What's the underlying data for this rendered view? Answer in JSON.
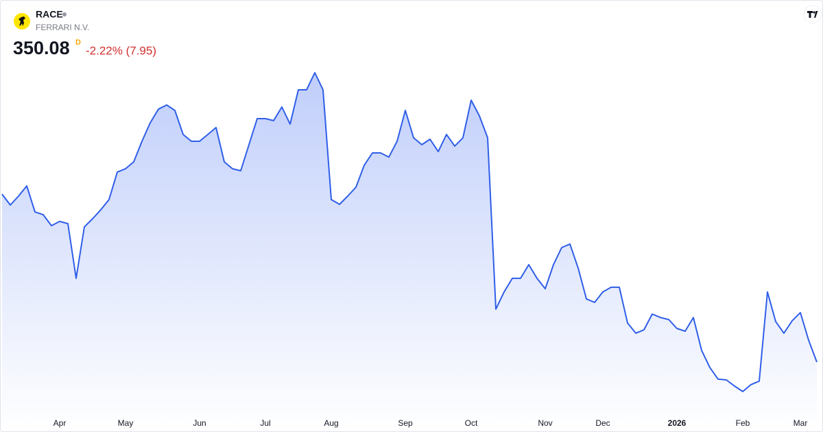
{
  "chart_data": {
    "type": "area",
    "symbol": "RACE",
    "name": "FERRARI N.V.",
    "price": "350.08",
    "interval": "D",
    "change": "-2.22% (7.95)",
    "categories": [
      null,
      null,
      null,
      null,
      null,
      null,
      null,
      "Apr",
      null,
      null,
      null,
      null,
      null,
      null,
      null,
      "May",
      null,
      null,
      null,
      null,
      null,
      null,
      null,
      null,
      "Jun",
      null,
      null,
      null,
      null,
      null,
      null,
      null,
      "Jul",
      null,
      null,
      null,
      null,
      null,
      null,
      null,
      "Aug",
      null,
      null,
      null,
      null,
      null,
      null,
      null,
      null,
      "Sep",
      null,
      null,
      null,
      null,
      null,
      null,
      null,
      "Oct",
      null,
      null,
      null,
      null,
      null,
      null,
      null,
      null,
      "Nov",
      null,
      null,
      null,
      null,
      null,
      null,
      "Dec",
      null,
      null,
      null,
      null,
      null,
      null,
      null,
      null,
      "2026",
      null,
      null,
      null,
      null,
      null,
      null,
      null,
      "Feb",
      null,
      null,
      null,
      null,
      null,
      null,
      "Mar",
      null,
      null
    ],
    "series": [
      {
        "color": "#2f5ee8",
        "values": [
          442.2,
          436.2,
          441.1,
          446.7,
          432.4,
          430.9,
          424.9,
          427.2,
          426.0,
          396.0,
          424.2,
          428.7,
          433.6,
          439.2,
          454.3,
          456.1,
          459.9,
          471.2,
          481.3,
          488.8,
          491.1,
          488.1,
          474.9,
          471.2,
          471.2,
          474.9,
          478.7,
          459.9,
          456.1,
          455.0,
          469.3,
          483.6,
          483.6,
          482.5,
          490.0,
          480.6,
          499.4,
          499.4,
          508.8,
          499.4,
          439.2,
          436.6,
          441.1,
          446.0,
          458.0,
          464.8,
          464.8,
          462.5,
          471.2,
          488.1,
          473.1,
          469.3,
          472.3,
          465.5,
          474.9,
          468.5,
          473.1,
          493.7,
          485.1,
          473.1,
          379.1,
          388.5,
          396.0,
          396.0,
          403.5,
          396.0,
          390.3,
          403.5,
          412.9,
          414.8,
          401.6,
          384.7,
          382.8,
          388.5,
          391.1,
          391.1,
          371.5,
          365.9,
          367.8,
          376.4,
          374.5,
          373.4,
          368.5,
          367.0,
          374.5,
          356.5,
          347.1,
          340.7,
          340.3,
          336.9,
          333.9,
          337.7,
          339.6,
          388.5,
          372.3,
          365.9,
          372.7,
          377.2,
          362.1,
          350.08
        ]
      }
    ]
  }
}
